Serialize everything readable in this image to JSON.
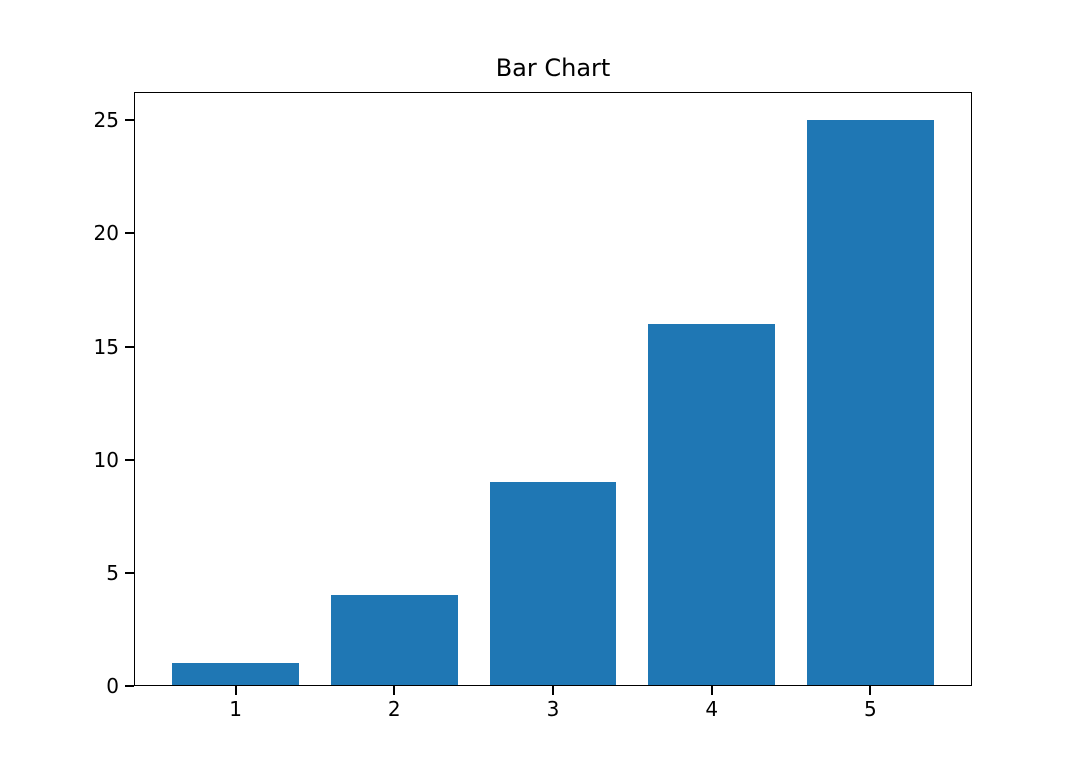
{
  "figure": {
    "background": "#ffffff"
  },
  "chart_data": {
    "type": "bar",
    "title": "Bar Chart",
    "xlabel": "",
    "ylabel": "",
    "categories": [
      "1",
      "2",
      "3",
      "4",
      "5"
    ],
    "x": [
      1,
      2,
      3,
      4,
      5
    ],
    "values": [
      1,
      4,
      9,
      16,
      25
    ],
    "bar_color": "#1f77b4",
    "bar_width": 0.8,
    "xlim": [
      0.36,
      5.64
    ],
    "ylim": [
      0,
      26.25
    ],
    "xticks": [
      1,
      2,
      3,
      4,
      5
    ],
    "yticks": [
      0,
      5,
      10,
      15,
      20,
      25
    ],
    "grid": false,
    "legend": null,
    "frame_color": "#000000",
    "tick_color": "#000000",
    "text_color": "#000000"
  }
}
